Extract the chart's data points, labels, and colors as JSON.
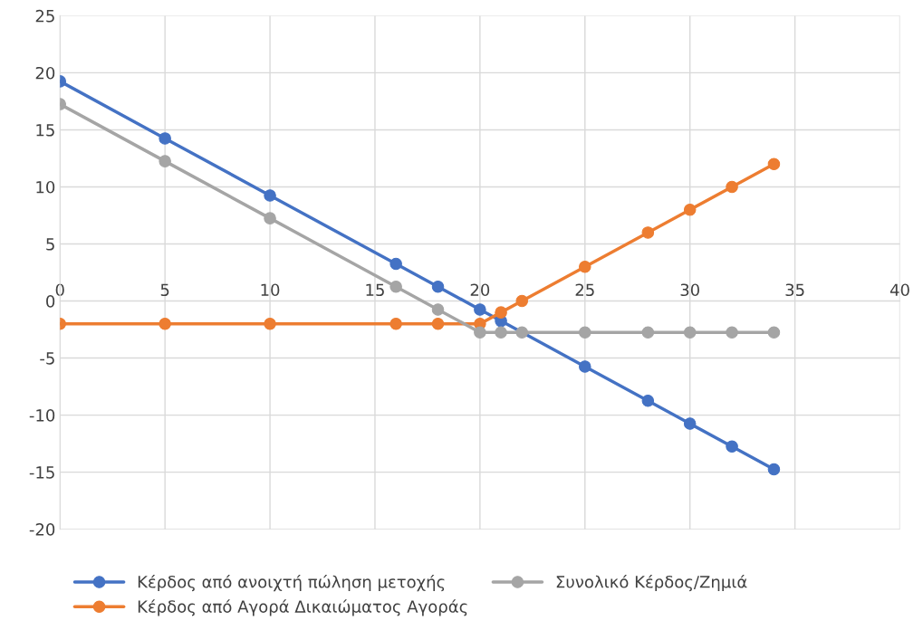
{
  "chart_data": {
    "type": "line",
    "xlim": [
      0,
      40
    ],
    "xticks": [
      0,
      5,
      10,
      15,
      20,
      25,
      30,
      35,
      40
    ],
    "ylim": [
      -20,
      25
    ],
    "yticks": [
      -20,
      -15,
      -10,
      -5,
      0,
      5,
      10,
      15,
      20,
      25
    ],
    "grid": true,
    "legend": "bottom",
    "marker": "circle",
    "line_style": "solid",
    "x": [
      0,
      5,
      10,
      16,
      18,
      20,
      21,
      22,
      25,
      28,
      30,
      32,
      34
    ],
    "series": [
      {
        "name": "Κέρδος από ανοιχτή πώληση μετοχής",
        "color": "#4472c4",
        "x": [
          0,
          5,
          10,
          16,
          18,
          20,
          21,
          25,
          28,
          30,
          32,
          34
        ],
        "values": [
          19.25,
          14.25,
          9.25,
          3.25,
          1.25,
          -0.75,
          -1.75,
          -5.75,
          -8.75,
          -10.75,
          -12.75,
          -14.75
        ]
      },
      {
        "name": "Κέρδος από Αγορά Δικαιώματος Αγοράς",
        "color": "#ed7d31",
        "values": [
          -2,
          -2,
          -2,
          -2,
          -2,
          -2,
          -1,
          0,
          3,
          6,
          8,
          10,
          12
        ]
      },
      {
        "name": "Συνολικό Κέρδος/Ζημιά",
        "color": "#a5a5a5",
        "values": [
          17.25,
          12.25,
          7.25,
          1.25,
          -0.75,
          -2.75,
          -2.75,
          -2.75,
          -2.75,
          -2.75,
          -2.75,
          -2.75,
          -2.75
        ]
      }
    ]
  }
}
